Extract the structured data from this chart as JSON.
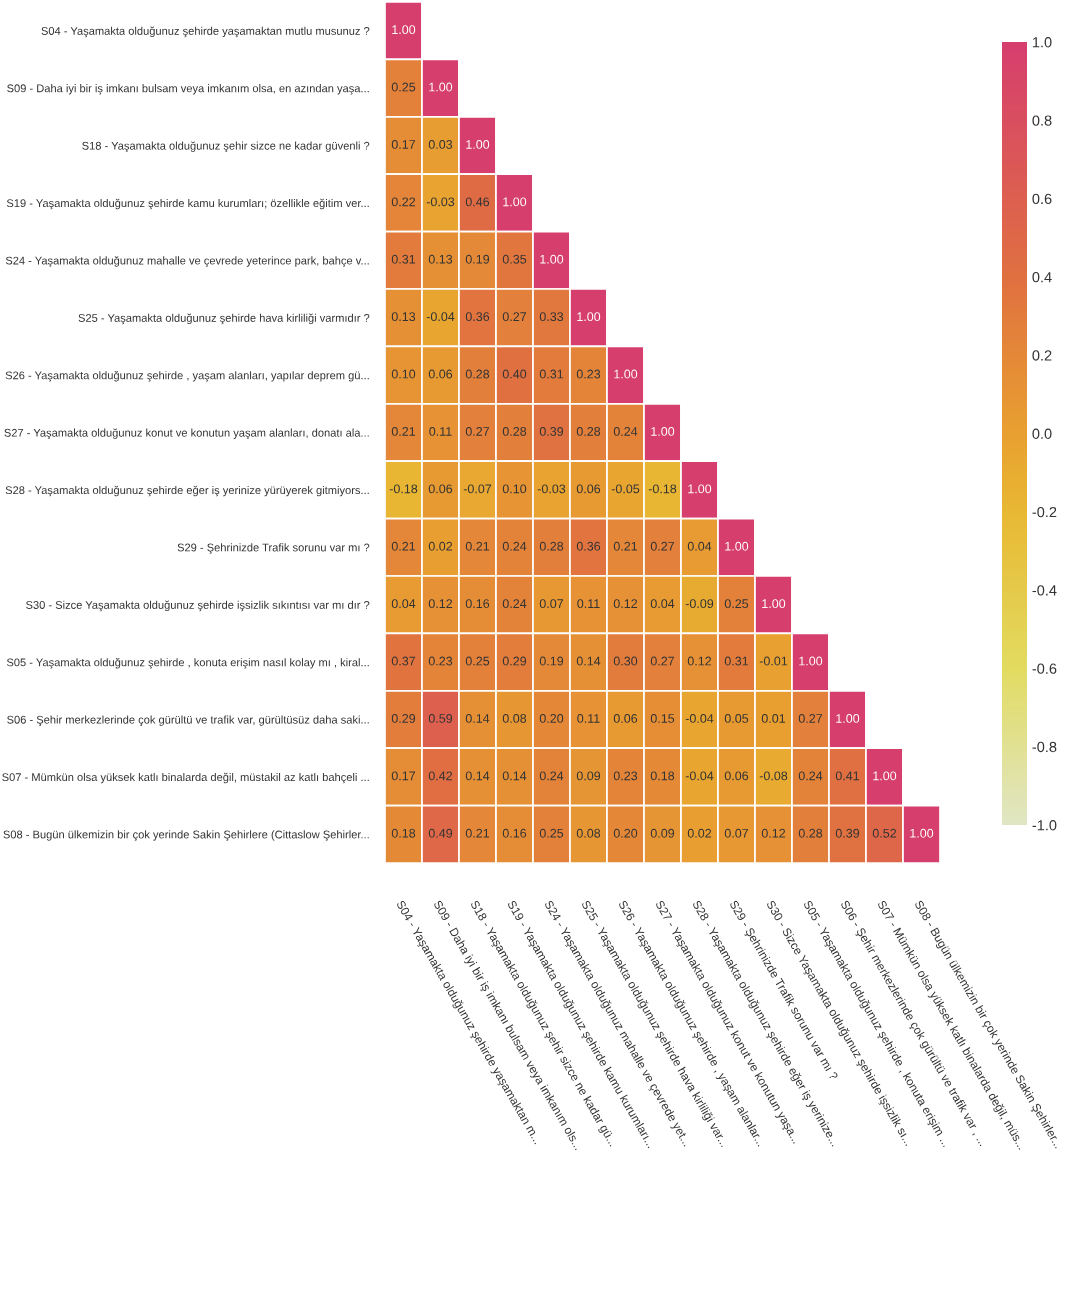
{
  "chart_data": {
    "type": "heatmap",
    "categories": [
      "S04 - Yaşamakta olduğunuz şehirde yaşamaktan m...",
      "S09 - Daha iyi bir iş imkanı bulsam veya imkanım ols...",
      "S18 - Yaşamakta olduğunuz şehir sizce ne kadar gü...",
      "S19 - Yaşamakta olduğunuz şehirde kamu kurumları...",
      "S24 - Yaşamakta olduğunuz mahalle ve çevrede yet...",
      "S25 - Yaşamakta olduğunuz şehirde hava kirliliği var...",
      "S26 - Yaşamakta olduğunuz şehirde , yaşam alanlar...",
      "S27 - Yaşamakta olduğunuz konut ve konutun yaşa...",
      "S28 - Yaşamakta olduğunuz şehirde eğer iş yerinize...",
      "S29 - Şehrinizde Trafik sorunu var mı ?",
      "S30 - Sizce Yaşamakta olduğunuz şehirde işsizlik sı...",
      "S05 - Yaşamakta olduğunuz şehirde , konuta erişim ...",
      "S06 - Şehir merkezlerinde çok gürültü ve trafik var , ...",
      "S07 - Mümkün olsa yüksek katlı binalarda değil, müs...",
      "S08 - Bugün ülkemizin bir çok yerinde Sakin Şehirler..."
    ],
    "y_categories": [
      "S04 - Yaşamakta olduğunuz şehirde yaşamaktan mutlu musunuz ?",
      "S09 - Daha iyi bir iş imkanı bulsam veya imkanım olsa, en azından yaşa...",
      "S18 - Yaşamakta olduğunuz şehir sizce ne kadar güvenli ?",
      "S19 - Yaşamakta olduğunuz şehirde kamu kurumları; özellikle eğitim ver...",
      "S24 - Yaşamakta olduğunuz mahalle ve çevrede yeterince park, bahçe v...",
      "S25 - Yaşamakta olduğunuz şehirde hava kirliliği varmıdır ?",
      "S26 - Yaşamakta olduğunuz şehirde , yaşam alanları, yapılar deprem gü...",
      "S27 - Yaşamakta olduğunuz konut ve konutun yaşam alanları, donatı ala...",
      "S28 - Yaşamakta olduğunuz şehirde eğer iş yerinize yürüyerek gitmiyors...",
      "S29 - Şehrinizde Trafik sorunu var mı ?",
      "S30 - Sizce Yaşamakta olduğunuz şehirde işsizlik sıkıntısı var mı dır ?",
      "S05 - Yaşamakta olduğunuz şehirde , konuta erişim nasıl kolay mı , kiral...",
      "S06 - Şehir merkezlerinde çok gürültü ve trafik var, gürültüsüz daha saki...",
      "S07 - Mümkün olsa yüksek katlı binalarda değil, müstakil az katlı bahçeli ...",
      "S08 - Bugün ülkemizin bir çok yerinde Sakin Şehirlere (Cittaslow Şehirler..."
    ],
    "cells": [
      [
        1.0,
        null,
        null,
        null,
        null,
        null,
        null,
        null,
        null,
        null,
        null,
        null,
        null,
        null,
        null
      ],
      [
        0.25,
        1.0,
        null,
        null,
        null,
        null,
        null,
        null,
        null,
        null,
        null,
        null,
        null,
        null,
        null
      ],
      [
        0.17,
        0.03,
        1.0,
        null,
        null,
        null,
        null,
        null,
        null,
        null,
        null,
        null,
        null,
        null,
        null
      ],
      [
        0.22,
        -0.03,
        0.46,
        1.0,
        null,
        null,
        null,
        null,
        null,
        null,
        null,
        null,
        null,
        null,
        null
      ],
      [
        0.31,
        0.13,
        0.19,
        0.35,
        1.0,
        null,
        null,
        null,
        null,
        null,
        null,
        null,
        null,
        null,
        null
      ],
      [
        0.13,
        -0.04,
        0.36,
        0.27,
        0.33,
        1.0,
        null,
        null,
        null,
        null,
        null,
        null,
        null,
        null,
        null
      ],
      [
        0.1,
        0.06,
        0.28,
        0.4,
        0.31,
        0.23,
        1.0,
        null,
        null,
        null,
        null,
        null,
        null,
        null,
        null
      ],
      [
        0.21,
        0.11,
        0.27,
        0.28,
        0.39,
        0.28,
        0.24,
        1.0,
        null,
        null,
        null,
        null,
        null,
        null,
        null
      ],
      [
        -0.18,
        0.06,
        -0.07,
        0.1,
        -0.03,
        0.06,
        -0.05,
        -0.18,
        1.0,
        null,
        null,
        null,
        null,
        null,
        null
      ],
      [
        0.21,
        0.02,
        0.21,
        0.24,
        0.28,
        0.36,
        0.21,
        0.27,
        0.04,
        1.0,
        null,
        null,
        null,
        null,
        null
      ],
      [
        0.04,
        0.12,
        0.16,
        0.24,
        0.07,
        0.11,
        0.12,
        0.04,
        -0.09,
        0.25,
        1.0,
        null,
        null,
        null,
        null
      ],
      [
        0.37,
        0.23,
        0.25,
        0.29,
        0.19,
        0.14,
        0.3,
        0.27,
        0.12,
        0.31,
        -0.01,
        1.0,
        null,
        null,
        null
      ],
      [
        0.29,
        0.59,
        0.14,
        0.08,
        0.2,
        0.11,
        0.06,
        0.15,
        -0.04,
        0.05,
        0.01,
        0.27,
        1.0,
        null,
        null
      ],
      [
        0.17,
        0.42,
        0.14,
        0.14,
        0.24,
        0.09,
        0.23,
        0.18,
        -0.04,
        0.06,
        -0.08,
        0.24,
        0.41,
        1.0,
        null
      ],
      [
        0.18,
        0.49,
        0.21,
        0.16,
        0.25,
        0.08,
        0.2,
        0.09,
        0.02,
        0.07,
        0.12,
        0.28,
        0.39,
        0.52,
        1.0
      ]
    ],
    "cell_labels": [
      [
        "1.00",
        null,
        null,
        null,
        null,
        null,
        null,
        null,
        null,
        null,
        null,
        null,
        null,
        null,
        null
      ],
      [
        "0.25",
        "1.00",
        null,
        null,
        null,
        null,
        null,
        null,
        null,
        null,
        null,
        null,
        null,
        null,
        null
      ],
      [
        "0.17",
        "0.03",
        "1.00",
        null,
        null,
        null,
        null,
        null,
        null,
        null,
        null,
        null,
        null,
        null,
        null
      ],
      [
        "0.22",
        "-0.03",
        "0.46",
        "1.00",
        null,
        null,
        null,
        null,
        null,
        null,
        null,
        null,
        null,
        null,
        null
      ],
      [
        "0.31",
        "0.13",
        "0.19",
        "0.35",
        "1.00",
        null,
        null,
        null,
        null,
        null,
        null,
        null,
        null,
        null,
        null
      ],
      [
        "0.13",
        "-0.04",
        "0.36",
        "0.27",
        "0.33",
        "1.00",
        null,
        null,
        null,
        null,
        null,
        null,
        null,
        null,
        null
      ],
      [
        "0.10",
        "0.06",
        "0.28",
        "0.40",
        "0.31",
        "0.23",
        "1.00",
        null,
        null,
        null,
        null,
        null,
        null,
        null,
        null
      ],
      [
        "0.21",
        "0.11",
        "0.27",
        "0.28",
        "0.39",
        "0.28",
        "0.24",
        "1.00",
        null,
        null,
        null,
        null,
        null,
        null,
        null
      ],
      [
        "-0.18",
        "0.06",
        "-0.07",
        "0.10",
        "-0.03",
        "0.06",
        "-0.05",
        "-0.18",
        "1.00",
        null,
        null,
        null,
        null,
        null,
        null
      ],
      [
        "0.21",
        "0.02",
        "0.21",
        "0.24",
        "0.28",
        "0.36",
        "0.21",
        "0.27",
        "0.04",
        "1.00",
        null,
        null,
        null,
        null,
        null
      ],
      [
        "0.04",
        "0.12",
        "0.16",
        "0.24",
        "0.07",
        "0.11",
        "0.12",
        "0.04",
        "-0.09",
        "0.25",
        "1.00",
        null,
        null,
        null,
        null
      ],
      [
        "0.37",
        "0.23",
        "0.25",
        "0.29",
        "0.19",
        "0.14",
        "0.30",
        "0.27",
        "0.12",
        "0.31",
        "-0.01",
        "1.00",
        null,
        null,
        null
      ],
      [
        "0.29",
        "0.59",
        "0.14",
        "0.08",
        "0.20",
        "0.11",
        "0.06",
        "0.15",
        "-0.04",
        "0.05",
        "0.01",
        "0.27",
        "1.00",
        null,
        null
      ],
      [
        "0.17",
        "0.42",
        "0.14",
        "0.14",
        "0.24",
        "0.09",
        "0.23",
        "0.18",
        "-0.04",
        "0.06",
        "-0.08",
        "0.24",
        "0.41",
        "1.00",
        null
      ],
      [
        "0.18",
        "0.49",
        "0.21",
        "0.16",
        "0.25",
        "0.08",
        "0.20",
        "0.09",
        "0.02",
        "0.07",
        "0.12",
        "0.28",
        "0.39",
        "0.52",
        "1.00"
      ]
    ],
    "clim": [
      -1.0,
      1.0
    ],
    "cticks": [
      {
        "value": -1.0,
        "label": "-1.0"
      },
      {
        "value": -0.8,
        "label": "-0.8"
      },
      {
        "value": -0.6,
        "label": "-0.6"
      },
      {
        "value": -0.4,
        "label": "-0.4"
      },
      {
        "value": -0.2,
        "label": "-0.2"
      },
      {
        "value": 0.0,
        "label": "0.0"
      },
      {
        "value": 0.2,
        "label": "0.2"
      },
      {
        "value": 0.4,
        "label": "0.4"
      },
      {
        "value": 0.6,
        "label": "0.6"
      },
      {
        "value": 0.8,
        "label": "0.8"
      },
      {
        "value": 1.0,
        "label": "1.0"
      }
    ]
  }
}
